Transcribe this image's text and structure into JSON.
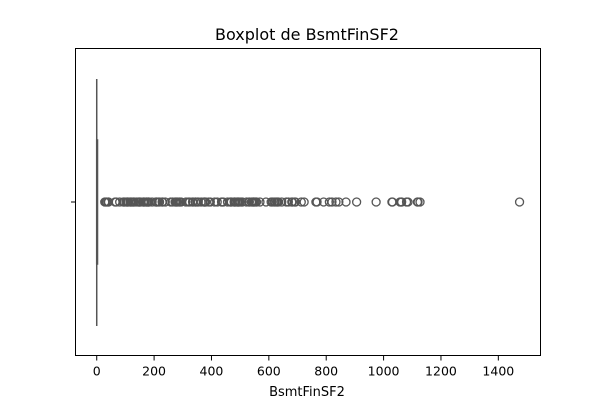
{
  "chart_data": {
    "type": "boxplot",
    "title": "Boxplot de BsmtFinSF2",
    "xlabel": "BsmtFinSF2",
    "ylabel": "",
    "xlim": [
      -74,
      1547
    ],
    "xticks": [
      0,
      200,
      400,
      600,
      800,
      1000,
      1200,
      1400
    ],
    "xtick_labels": [
      "0",
      "200",
      "400",
      "600",
      "800",
      "1000",
      "1200",
      "1400"
    ],
    "box": {
      "min": 0,
      "q1": 0,
      "median": 0,
      "q3": 0,
      "max": 0
    },
    "outliers": [
      28,
      32,
      35,
      40,
      41,
      64,
      68,
      80,
      93,
      95,
      96,
      102,
      106,
      108,
      110,
      116,
      117,
      120,
      123,
      127,
      128,
      132,
      138,
      144,
      147,
      149,
      150,
      153,
      162,
      163,
      165,
      168,
      173,
      174,
      177,
      180,
      181,
      182,
      193,
      206,
      208,
      210,
      215,
      219,
      228,
      230,
      239,
      258,
      264,
      273,
      276,
      279,
      281,
      287,
      290,
      294,
      311,
      319,
      324,
      334,
      336,
      344,
      345,
      351,
      354,
      364,
      374,
      375,
      377,
      380,
      391,
      396,
      411,
      420,
      435,
      438,
      441,
      456,
      465,
      468,
      469,
      479,
      480,
      482,
      486,
      491,
      492,
      494,
      496,
      500,
      506,
      507,
      522,
      531,
      532,
      539,
      543,
      546,
      547,
      551,
      555,
      557,
      569,
      590,
      608,
      612,
      618,
      622,
      627,
      630,
      633,
      645,
      661,
      668,
      680,
      682,
      690,
      693,
      713,
      723,
      764,
      768,
      791,
      811,
      820,
      834,
      844,
      869,
      906,
      974,
      1029,
      1031,
      1057,
      1061,
      1063,
      1080,
      1085,
      1118,
      1120,
      1127,
      1474
    ]
  }
}
